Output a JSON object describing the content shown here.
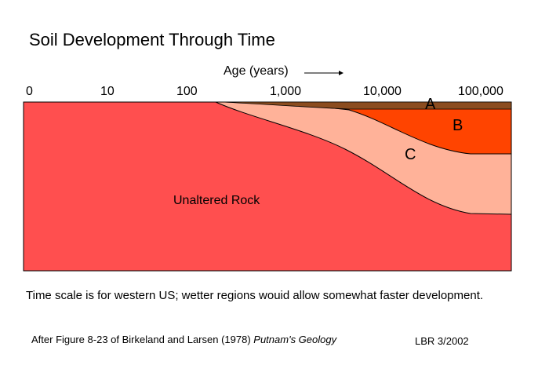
{
  "title": "Soil Development Through Time",
  "axis": {
    "label": "Age (years)",
    "ticks": [
      "0",
      "10",
      "100",
      "1,000",
      "10,000",
      "100,000"
    ]
  },
  "regions": {
    "a": "A",
    "b": "B",
    "c": "C",
    "rock": "Unaltered Rock"
  },
  "colors": {
    "rock": "#ff4f4f",
    "horizon_a": "#8b4c1f",
    "horizon_b": "#ff4400",
    "horizon_c": "#ffb299",
    "outline": "#000000"
  },
  "note": "Time scale is for western US; wetter regions wouid allow somewhat faster development.",
  "credit": {
    "text": "After Figure 8-23 of Birkeland and Larsen (1978) ",
    "book": "Putnam's Geology"
  },
  "signature": "LBR 3/2002"
}
